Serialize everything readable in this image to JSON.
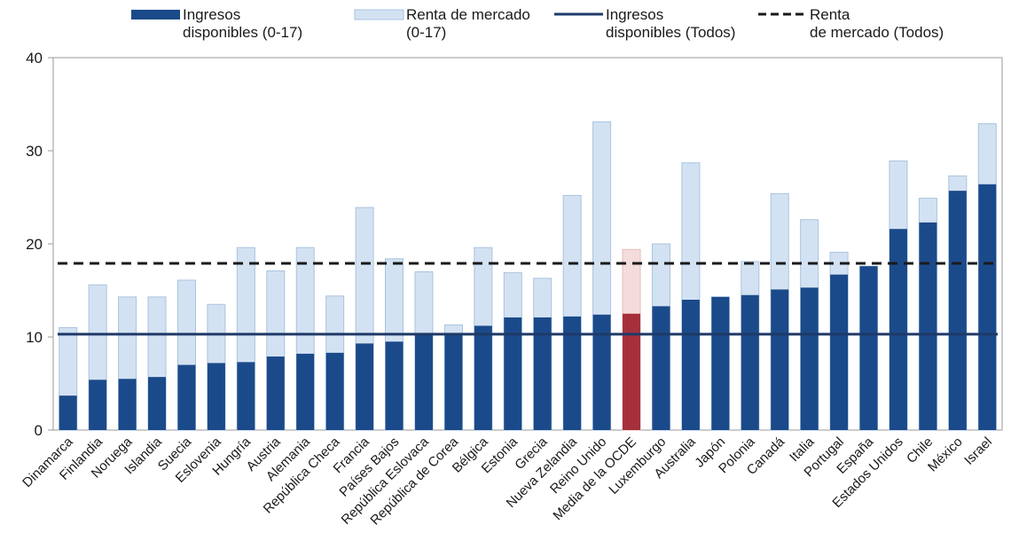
{
  "chart_data": {
    "type": "bar",
    "title": "",
    "xlabel": "",
    "ylabel": "",
    "ylim": [
      0,
      40
    ],
    "yticks": [
      0,
      10,
      20,
      30,
      40
    ],
    "grid": false,
    "legend_position": "top",
    "categories": [
      "Dinamarca",
      "Finlandia",
      "Noruega",
      "Islandia",
      "Suecia",
      "Eslovenia",
      "Hungría",
      "Austria",
      "Alemania",
      "República Checa",
      "Francia",
      "Países Bajos",
      "República Eslovaca",
      "República de Corea",
      "Bélgica",
      "Estonia",
      "Grecia",
      "Nueva Zelandia",
      "Reino Unido",
      "Media de la OCDE",
      "Luxemburgo",
      "Australia",
      "Japón",
      "Polonia",
      "Canadá",
      "Italia",
      "Portugal",
      "España",
      "Estados Unidos",
      "Chile",
      "México",
      "Israel"
    ],
    "highlight_category": "Media de la OCDE",
    "series": [
      {
        "name": "Ingresos disponibles (0-17)",
        "legend_lines": [
          "Ingresos",
          "disponibles (0-17)"
        ],
        "type": "bar",
        "color": "#1b4a8a",
        "highlight_color": "#a5303b",
        "values": [
          3.7,
          5.4,
          5.5,
          5.7,
          7.0,
          7.2,
          7.3,
          7.9,
          8.2,
          8.3,
          9.3,
          9.5,
          10.3,
          10.3,
          11.2,
          12.1,
          12.1,
          12.2,
          12.4,
          12.5,
          13.3,
          14.0,
          14.3,
          14.5,
          15.1,
          15.3,
          16.7,
          17.6,
          21.6,
          22.3,
          25.7,
          26.4
        ]
      },
      {
        "name": "Renta de mercado (0-17)",
        "legend_lines": [
          "Renta de mercado",
          "(0-17)"
        ],
        "type": "bar",
        "color": "#d3e2f2",
        "highlight_color": "#f4dcdc",
        "values": [
          11.0,
          15.6,
          14.3,
          14.3,
          16.1,
          13.5,
          19.6,
          17.1,
          19.6,
          14.4,
          23.9,
          18.4,
          17.0,
          11.3,
          19.6,
          16.9,
          16.3,
          25.2,
          33.1,
          19.4,
          20.0,
          28.7,
          14.3,
          18.1,
          25.4,
          22.6,
          19.1,
          17.6,
          28.9,
          24.9,
          27.3,
          32.9
        ]
      },
      {
        "name": "Ingresos disponibles (Todos)",
        "legend_lines": [
          "Ingresos",
          "disponibles (Todos)"
        ],
        "type": "hline",
        "color": "#1f3a68",
        "value": 10.3
      },
      {
        "name": "Renta de mercado (Todos)",
        "legend_lines": [
          "Renta",
          "de mercado (Todos)"
        ],
        "type": "hline",
        "dashed": true,
        "color": "#1a1a1a",
        "value": 17.9
      }
    ]
  }
}
